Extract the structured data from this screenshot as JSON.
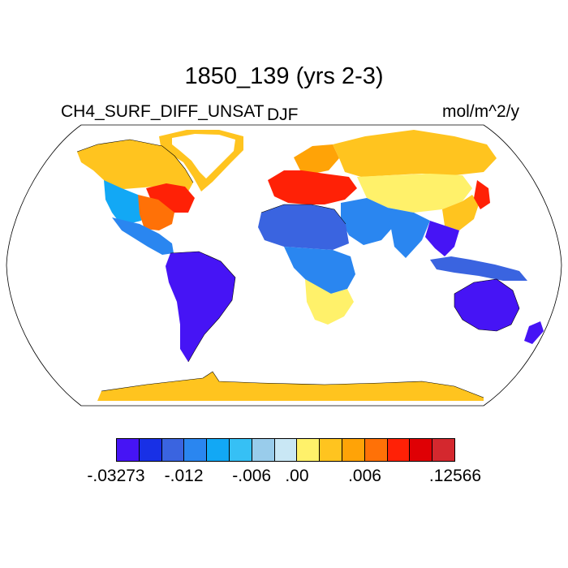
{
  "title": "1850_139 (yrs 2-3)",
  "variable_label": "CH4_SURF_DIFF_UNSAT",
  "season_label": "DJF",
  "units_label": "mol/m^2/y",
  "projection": "Robinson",
  "colorbar": {
    "colors": [
      "#4614f5",
      "#1830e6",
      "#3a64e0",
      "#2a86f0",
      "#12a8f5",
      "#36c0f5",
      "#99cceb",
      "#c9e7f5",
      "#fff16a",
      "#ffc41f",
      "#ffa307",
      "#ff7107",
      "#ff2106",
      "#df0005",
      "#d4282e"
    ],
    "labels": [
      "-.03273",
      "-.012",
      "-.006",
      ".00",
      ".006",
      ".12566"
    ]
  },
  "regions": [
    {
      "name": "North America (boreal)",
      "color": "#ffc41f"
    },
    {
      "name": "Canada east",
      "color": "#ff2106"
    },
    {
      "name": "Eastern US",
      "color": "#ff7107"
    },
    {
      "name": "Western US",
      "color": "#12a8f5"
    },
    {
      "name": "Mexico & Central America",
      "color": "#2a86f0"
    },
    {
      "name": "South America",
      "color": "#4614f5"
    },
    {
      "name": "Greenland coast",
      "color": "#ffc41f"
    },
    {
      "name": "Europe",
      "color": "#ff2106"
    },
    {
      "name": "Scandinavia",
      "color": "#ffa307"
    },
    {
      "name": "Siberia",
      "color": "#ffc41f"
    },
    {
      "name": "Central Asia",
      "color": "#fff16a"
    },
    {
      "name": "Middle East",
      "color": "#2a86f0"
    },
    {
      "name": "North Africa",
      "color": "#3a64e0"
    },
    {
      "name": "Central Africa",
      "color": "#2a86f0"
    },
    {
      "name": "Southern Africa",
      "color": "#fff16a"
    },
    {
      "name": "India",
      "color": "#2a86f0"
    },
    {
      "name": "China east",
      "color": "#ffc41f"
    },
    {
      "name": "Japan & Korea",
      "color": "#ff2106"
    },
    {
      "name": "Southeast Asia",
      "color": "#4614f5"
    },
    {
      "name": "Indonesia",
      "color": "#3a64e0"
    },
    {
      "name": "Australia",
      "color": "#4614f5"
    },
    {
      "name": "New Zealand",
      "color": "#4614f5"
    },
    {
      "name": "Antarctica coast",
      "color": "#ffc41f"
    }
  ]
}
